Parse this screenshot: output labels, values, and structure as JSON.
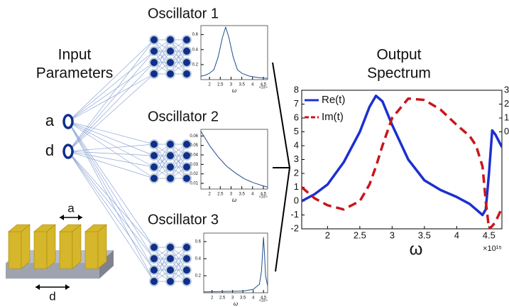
{
  "diagram": {
    "input_label": [
      "Input",
      "Parameters"
    ],
    "inputs": [
      "a",
      "d"
    ],
    "device_labels": [
      "a",
      "d"
    ]
  },
  "chart_data": [
    {
      "type": "line",
      "title": "Oscillator 1",
      "x": [
        1.6,
        1.8,
        2.0,
        2.2,
        2.4,
        2.6,
        2.75,
        2.9,
        3.1,
        3.3,
        3.5,
        3.8,
        4.1,
        4.4,
        4.7
      ],
      "series": [
        {
          "color": "#1f4e8c",
          "values": [
            0.045,
            0.058,
            0.085,
            0.13,
            0.3,
            0.56,
            0.7,
            0.56,
            0.3,
            0.13,
            0.085,
            0.05,
            0.033,
            0.023,
            0.017
          ]
        }
      ],
      "xlim": [
        1.6,
        4.7
      ],
      "ylim": [
        0,
        0.72
      ],
      "xticks": [
        2,
        2.5,
        3,
        3.5,
        4,
        4.5
      ],
      "yticks": [
        0.2,
        0.4,
        0.6
      ],
      "xlabel": "ω",
      "x_multiplier": "×10¹⁵"
    },
    {
      "type": "line",
      "title": "Oscillator 2",
      "x": [
        1.6,
        2.0,
        2.4,
        2.8,
        3.2,
        3.6,
        4.0,
        4.4,
        4.7
      ],
      "series": [
        {
          "color": "#1f4e8c",
          "values": [
            0.065,
            0.05,
            0.038,
            0.028,
            0.021,
            0.015,
            0.011,
            0.008,
            0.006
          ]
        }
      ],
      "xlim": [
        1.6,
        4.7
      ],
      "ylim": [
        0.004,
        0.067
      ],
      "xticks": [
        2,
        2.5,
        3,
        3.5,
        4,
        4.5
      ],
      "yticks": [
        0.01,
        0.02,
        0.03,
        0.04,
        0.05,
        0.06
      ],
      "xlabel": "ω",
      "x_multiplier": "×10¹⁵"
    },
    {
      "type": "line",
      "title": "Oscillator 3",
      "x": [
        1.6,
        2.5,
        3.5,
        4.0,
        4.3,
        4.4,
        4.45,
        4.5,
        4.55,
        4.6,
        4.7
      ],
      "series": [
        {
          "color": "#1f4e8c",
          "values": [
            0.01,
            0.015,
            0.02,
            0.04,
            0.1,
            0.25,
            0.45,
            0.65,
            0.45,
            0.2,
            0.08
          ]
        }
      ],
      "xlim": [
        1.6,
        4.7
      ],
      "ylim": [
        0,
        0.7
      ],
      "xticks": [
        2,
        2.5,
        3,
        3.5,
        4,
        4.5
      ],
      "yticks": [
        0.2,
        0.4,
        0.6
      ],
      "xlabel": "ω",
      "x_multiplier": "×10¹⁵"
    },
    {
      "type": "line",
      "title": [
        "Output",
        "Spectrum"
      ],
      "x": [
        1.6,
        1.8,
        2.0,
        2.25,
        2.5,
        2.65,
        2.75,
        2.85,
        3.0,
        3.25,
        3.5,
        3.75,
        4.0,
        4.2,
        4.3,
        4.4,
        4.45,
        4.5,
        4.55,
        4.6,
        4.7
      ],
      "series": [
        {
          "name": "Re(t)",
          "color": "#1c2fd0",
          "values": [
            0,
            0.5,
            1.2,
            2.8,
            5,
            6.8,
            7.6,
            7.2,
            5.5,
            3.0,
            1.5,
            0.8,
            0.3,
            -0.2,
            -0.6,
            -1.0,
            -0.6,
            2.0,
            5.1,
            4.8,
            3.9
          ]
        },
        {
          "name": "Im(t)",
          "color": "#c8161d",
          "axis": "y2",
          "values": [
            -4,
            -4.8,
            -5.3,
            -5.6,
            -5,
            -3.8,
            -2.5,
            -1,
            1,
            2.4,
            2.3,
            1.6,
            0.5,
            -0.3,
            -1,
            -2.5,
            -5,
            -7,
            -6.8,
            -6.5,
            -5.5
          ]
        }
      ],
      "xlim": [
        1.6,
        4.7
      ],
      "ylim": [
        -2,
        8
      ],
      "y2lim": [
        -7,
        3
      ],
      "xticks": [
        2,
        2.5,
        3,
        3.5,
        4,
        4.5
      ],
      "yticks": [
        -2,
        -1,
        0,
        1,
        2,
        3,
        4,
        5,
        6,
        7,
        8
      ],
      "y2ticks": [
        0,
        1,
        2,
        3
      ],
      "xlabel": "ω",
      "x_multiplier": "×10¹⁵"
    }
  ]
}
